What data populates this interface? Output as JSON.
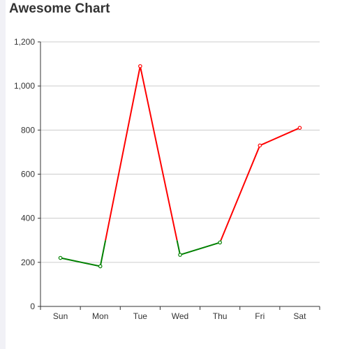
{
  "page": {
    "title": "Awesome Chart"
  },
  "colors": {
    "threshold_below": "#008000",
    "threshold_above": "#ff0000",
    "grid": "#cccccc",
    "axis": "#333333"
  },
  "chart_data": {
    "type": "line",
    "title": "Awesome Chart",
    "categories": [
      "Sun",
      "Mon",
      "Tue",
      "Wed",
      "Thu",
      "Fri",
      "Sat"
    ],
    "values": [
      220,
      182,
      1090,
      234,
      290,
      730,
      810
    ],
    "ylim": [
      0,
      1200
    ],
    "yticks": [
      0,
      200,
      400,
      600,
      800,
      1000,
      1200
    ],
    "ytick_labels": [
      "0",
      "200",
      "400",
      "600",
      "800",
      "1,000",
      "1,200"
    ],
    "color_threshold": 300,
    "grid": true,
    "legend": "none"
  }
}
